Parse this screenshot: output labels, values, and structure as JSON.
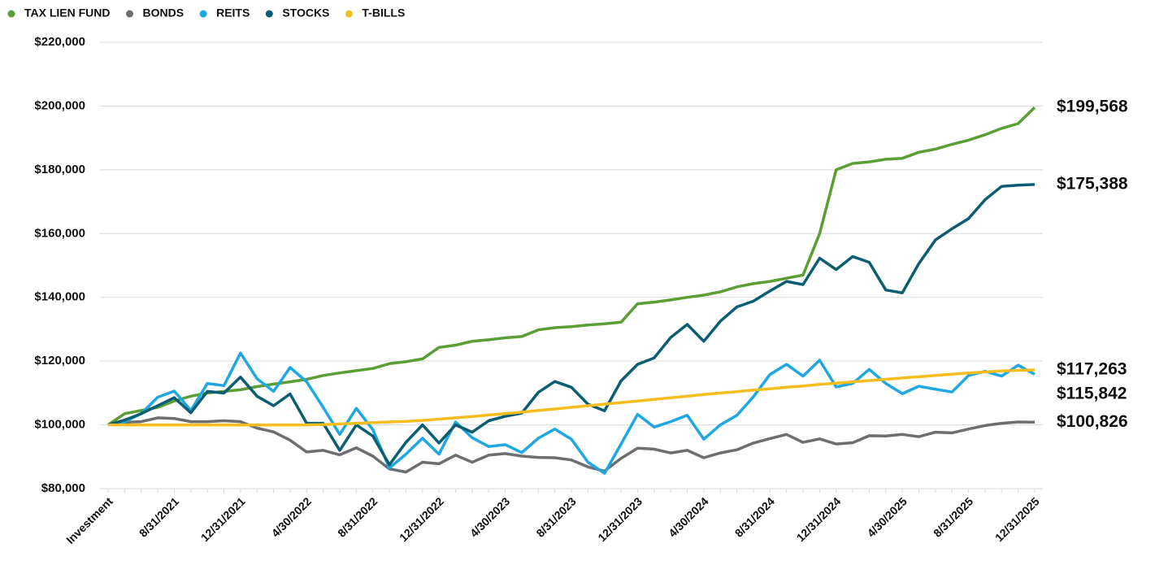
{
  "chart_data": {
    "type": "line",
    "categories": [
      "Investment",
      null,
      null,
      null,
      "8/31/2021",
      null,
      null,
      null,
      "12/31/2021",
      null,
      null,
      null,
      "4/30/2022",
      null,
      null,
      null,
      "8/31/2022",
      null,
      null,
      null,
      "12/31/2022",
      null,
      null,
      null,
      "4/30/2023",
      null,
      null,
      null,
      "8/31/2023",
      null,
      null,
      null,
      "12/31/2023",
      null,
      null,
      null,
      "4/30/2024",
      null,
      null,
      null,
      "8/31/2024",
      null,
      null,
      null,
      "12/31/2024",
      null,
      null,
      null,
      "4/30/2025",
      null,
      null,
      null,
      "8/31/2025",
      null,
      null,
      null,
      "12/31/2025"
    ],
    "series": [
      {
        "name": "TAX LIEN FUND",
        "color": "#5a9e35",
        "end_label": "$199,568",
        "values": [
          100000,
          103500,
          104500,
          105500,
          107500,
          109000,
          110000,
          110500,
          111000,
          112000,
          112800,
          113500,
          114300,
          115500,
          116300,
          117000,
          117700,
          119200,
          119800,
          120700,
          124300,
          125000,
          126200,
          126700,
          127300,
          127700,
          129800,
          130500,
          130800,
          131300,
          131700,
          132200,
          138000,
          138500,
          139200,
          140000,
          140700,
          141700,
          143300,
          144300,
          145000,
          146000,
          147000,
          160000,
          180000,
          182000,
          182500,
          183300,
          183600,
          185500,
          186500,
          188000,
          189300,
          191000,
          193000,
          194500,
          199568
        ]
      },
      {
        "name": "BONDS",
        "color": "#6d6e71",
        "end_label": "$100,826",
        "values": [
          100000,
          100800,
          101000,
          102200,
          102000,
          101000,
          101000,
          101300,
          101000,
          99000,
          97800,
          95200,
          91500,
          92000,
          90600,
          92800,
          90200,
          86200,
          85200,
          88300,
          87800,
          90500,
          88300,
          90500,
          91000,
          90200,
          89800,
          89700,
          89000,
          86800,
          85500,
          89500,
          92700,
          92400,
          91200,
          92000,
          89700,
          91200,
          92200,
          94300,
          95700,
          97000,
          94500,
          95600,
          94000,
          94400,
          96600,
          96500,
          97000,
          96300,
          97700,
          97500,
          98700,
          99800,
          100500,
          100900,
          100826
        ]
      },
      {
        "name": "REITS",
        "color": "#1ea7e1",
        "end_label": "$115,842",
        "values": [
          100000,
          101000,
          103500,
          108700,
          110600,
          104500,
          113000,
          112300,
          122500,
          114500,
          110500,
          118000,
          113500,
          105500,
          97000,
          105200,
          98500,
          86500,
          90800,
          95800,
          90800,
          100900,
          96000,
          93200,
          93800,
          91300,
          95800,
          98700,
          95500,
          88300,
          84800,
          94000,
          103300,
          99300,
          101000,
          103000,
          95500,
          100000,
          103000,
          108800,
          115800,
          119000,
          115300,
          120300,
          111900,
          113000,
          117400,
          113000,
          109800,
          112100,
          111200,
          110300,
          115500,
          116800,
          115300,
          118700,
          115842
        ]
      },
      {
        "name": "STOCKS",
        "color": "#0b5d72",
        "end_label": "$175,388",
        "values": [
          100000,
          101500,
          103500,
          106000,
          108500,
          103800,
          110500,
          110000,
          115000,
          109000,
          106000,
          109700,
          100500,
          100500,
          92000,
          100000,
          96500,
          87500,
          94500,
          100000,
          94300,
          100000,
          97700,
          101300,
          102700,
          103700,
          110200,
          113600,
          111800,
          106500,
          104400,
          113800,
          119000,
          121000,
          127400,
          131500,
          126200,
          132500,
          137000,
          138800,
          142000,
          145000,
          144000,
          152300,
          148700,
          152800,
          151000,
          142300,
          141400,
          150600,
          158000,
          161500,
          164700,
          170600,
          174800,
          175200,
          175388
        ]
      },
      {
        "name": "T-BILLS",
        "color": "#f5bd1f",
        "end_label": "$117,263",
        "values": [
          100000,
          100000,
          100000,
          100000,
          100000,
          100000,
          100000,
          100000,
          100000,
          100000,
          100000,
          100000,
          100000,
          100100,
          100300,
          100500,
          100700,
          100900,
          101100,
          101400,
          101800,
          102200,
          102600,
          103100,
          103500,
          104000,
          104500,
          105000,
          105500,
          106000,
          106500,
          107000,
          107500,
          108000,
          108500,
          109000,
          109500,
          110000,
          110400,
          110900,
          111300,
          111800,
          112200,
          112700,
          113100,
          113500,
          113900,
          114300,
          114700,
          115100,
          115500,
          115900,
          116300,
          116600,
          116900,
          117100,
          117263
        ]
      }
    ],
    "ylim": [
      80000,
      220000
    ],
    "yticks": [
      {
        "value": 80000,
        "label": "$80,000"
      },
      {
        "value": 100000,
        "label": "$100,000"
      },
      {
        "value": 120000,
        "label": "$120,000"
      },
      {
        "value": 140000,
        "label": "$140,000"
      },
      {
        "value": 160000,
        "label": "$160,000"
      },
      {
        "value": 180000,
        "label": "$180,000"
      },
      {
        "value": 200000,
        "label": "$200,000"
      },
      {
        "value": 220000,
        "label": "$220,000"
      }
    ],
    "grid": true,
    "legend": "top-left"
  }
}
